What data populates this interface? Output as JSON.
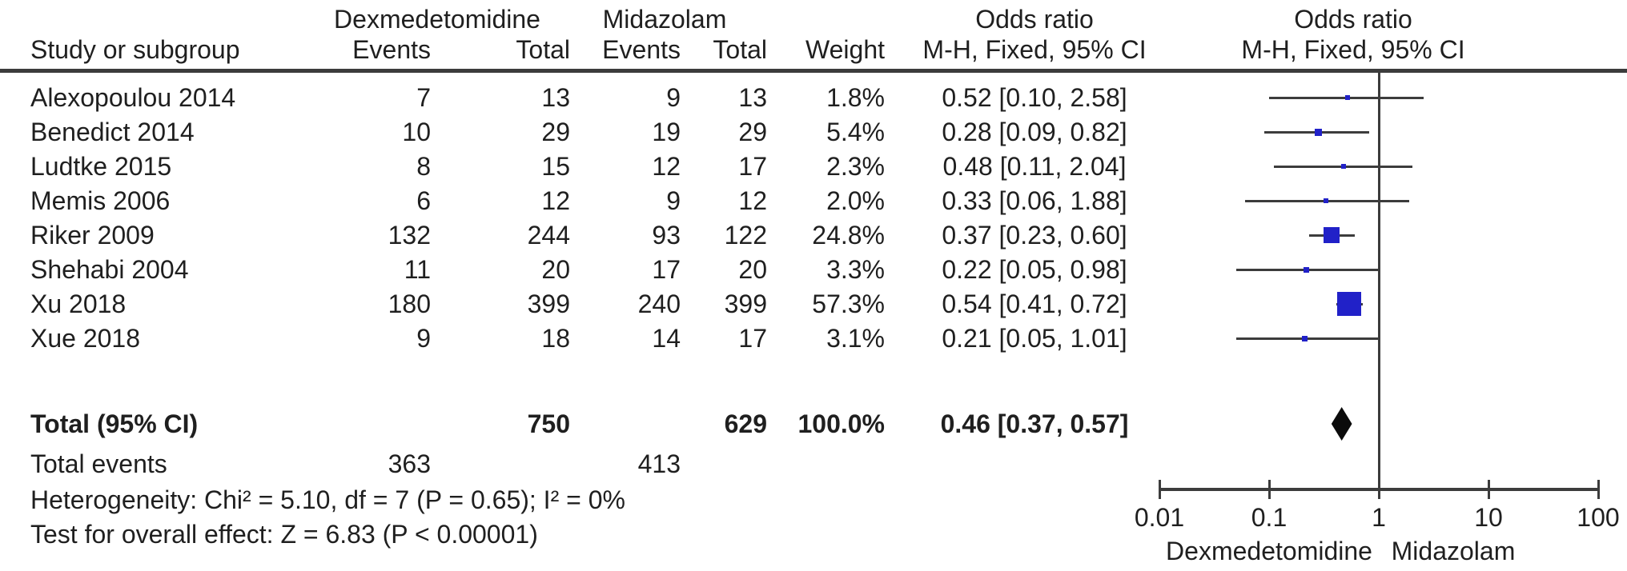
{
  "header": {
    "group1": "Dexmedetomidine",
    "group2": "Midazolam",
    "or_label": "Odds ratio",
    "method_label": "M-H, Fixed, 95% CI",
    "study_col": "Study or subgroup",
    "events_col": "Events",
    "total_col": "Total",
    "weight_col": "Weight"
  },
  "rows": [
    {
      "study": "Alexopoulou 2014",
      "e1": "7",
      "t1": "13",
      "e2": "9",
      "t2": "13",
      "weight": "1.8%",
      "ci": "0.52 [0.10, 2.58]"
    },
    {
      "study": "Benedict 2014",
      "e1": "10",
      "t1": "29",
      "e2": "19",
      "t2": "29",
      "weight": "5.4%",
      "ci": "0.28 [0.09, 0.82]"
    },
    {
      "study": "Ludtke 2015",
      "e1": "8",
      "t1": "15",
      "e2": "12",
      "t2": "17",
      "weight": "2.3%",
      "ci": "0.48 [0.11, 2.04]"
    },
    {
      "study": "Memis 2006",
      "e1": "6",
      "t1": "12",
      "e2": "9",
      "t2": "12",
      "weight": "2.0%",
      "ci": "0.33 [0.06, 1.88]"
    },
    {
      "study": "Riker 2009",
      "e1": "132",
      "t1": "244",
      "e2": "93",
      "t2": "122",
      "weight": "24.8%",
      "ci": "0.37 [0.23, 0.60]"
    },
    {
      "study": "Shehabi 2004",
      "e1": "11",
      "t1": "20",
      "e2": "17",
      "t2": "20",
      "weight": "3.3%",
      "ci": "0.22 [0.05, 0.98]"
    },
    {
      "study": "Xu 2018",
      "e1": "180",
      "t1": "399",
      "e2": "240",
      "t2": "399",
      "weight": "57.3%",
      "ci": "0.54 [0.41, 0.72]"
    },
    {
      "study": "Xue 2018",
      "e1": "9",
      "t1": "18",
      "e2": "14",
      "t2": "17",
      "weight": "3.1%",
      "ci": "0.21 [0.05, 1.01]"
    }
  ],
  "totals": {
    "label": "Total (95% CI)",
    "t1": "750",
    "t2": "629",
    "weight": "100.0%",
    "ci": "0.46 [0.37, 0.57]",
    "events_label": "Total events",
    "e1": "363",
    "e2": "413"
  },
  "footer": {
    "heterogeneity": "Heterogeneity: Chi² = 5.10, df = 7 (P = 0.65); I² = 0%",
    "overall": "Test for overall effect: Z = 6.83 (P < 0.00001)"
  },
  "axis": {
    "tick_labels": [
      "0.01",
      "0.1",
      "1",
      "10",
      "100"
    ],
    "left_label": "Dexmedetomidine",
    "right_label": "Midazolam"
  },
  "colors": {
    "square": "#2121c8",
    "diamond": "#0b0b0b",
    "line": "#3c3c3c",
    "text": "#1f1f1f"
  },
  "chart_data": {
    "type": "forest",
    "effect_measure": "Odds ratio, M-H, Fixed, 95% CI",
    "x_scale": "log10",
    "x_ticks": [
      0.01,
      0.1,
      1,
      10,
      100
    ],
    "x_axis_left_label": "Dexmedetomidine",
    "x_axis_right_label": "Midazolam",
    "studies": [
      {
        "name": "Alexopoulou 2014",
        "events_dex": 7,
        "total_dex": 13,
        "events_mid": 9,
        "total_mid": 13,
        "weight_pct": 1.8,
        "or": 0.52,
        "ci_low": 0.1,
        "ci_high": 2.58
      },
      {
        "name": "Benedict 2014",
        "events_dex": 10,
        "total_dex": 29,
        "events_mid": 19,
        "total_mid": 29,
        "weight_pct": 5.4,
        "or": 0.28,
        "ci_low": 0.09,
        "ci_high": 0.82
      },
      {
        "name": "Ludtke 2015",
        "events_dex": 8,
        "total_dex": 15,
        "events_mid": 12,
        "total_mid": 17,
        "weight_pct": 2.3,
        "or": 0.48,
        "ci_low": 0.11,
        "ci_high": 2.04
      },
      {
        "name": "Memis 2006",
        "events_dex": 6,
        "total_dex": 12,
        "events_mid": 9,
        "total_mid": 12,
        "weight_pct": 2.0,
        "or": 0.33,
        "ci_low": 0.06,
        "ci_high": 1.88
      },
      {
        "name": "Riker 2009",
        "events_dex": 132,
        "total_dex": 244,
        "events_mid": 93,
        "total_mid": 122,
        "weight_pct": 24.8,
        "or": 0.37,
        "ci_low": 0.23,
        "ci_high": 0.6
      },
      {
        "name": "Shehabi 2004",
        "events_dex": 11,
        "total_dex": 20,
        "events_mid": 17,
        "total_mid": 20,
        "weight_pct": 3.3,
        "or": 0.22,
        "ci_low": 0.05,
        "ci_high": 0.98
      },
      {
        "name": "Xu 2018",
        "events_dex": 180,
        "total_dex": 399,
        "events_mid": 240,
        "total_mid": 399,
        "weight_pct": 57.3,
        "or": 0.54,
        "ci_low": 0.41,
        "ci_high": 0.72
      },
      {
        "name": "Xue 2018",
        "events_dex": 9,
        "total_dex": 18,
        "events_mid": 14,
        "total_mid": 17,
        "weight_pct": 3.1,
        "or": 0.21,
        "ci_low": 0.05,
        "ci_high": 1.01
      }
    ],
    "total": {
      "label": "Total (95% CI)",
      "total_dex": 750,
      "total_mid": 629,
      "events_dex": 363,
      "events_mid": 413,
      "weight_pct": 100.0,
      "or": 0.46,
      "ci_low": 0.37,
      "ci_high": 0.57
    },
    "heterogeneity": "Chi² = 5.10, df = 7 (P = 0.65); I² = 0%",
    "overall_effect": "Z = 6.83 (P < 0.00001)"
  }
}
